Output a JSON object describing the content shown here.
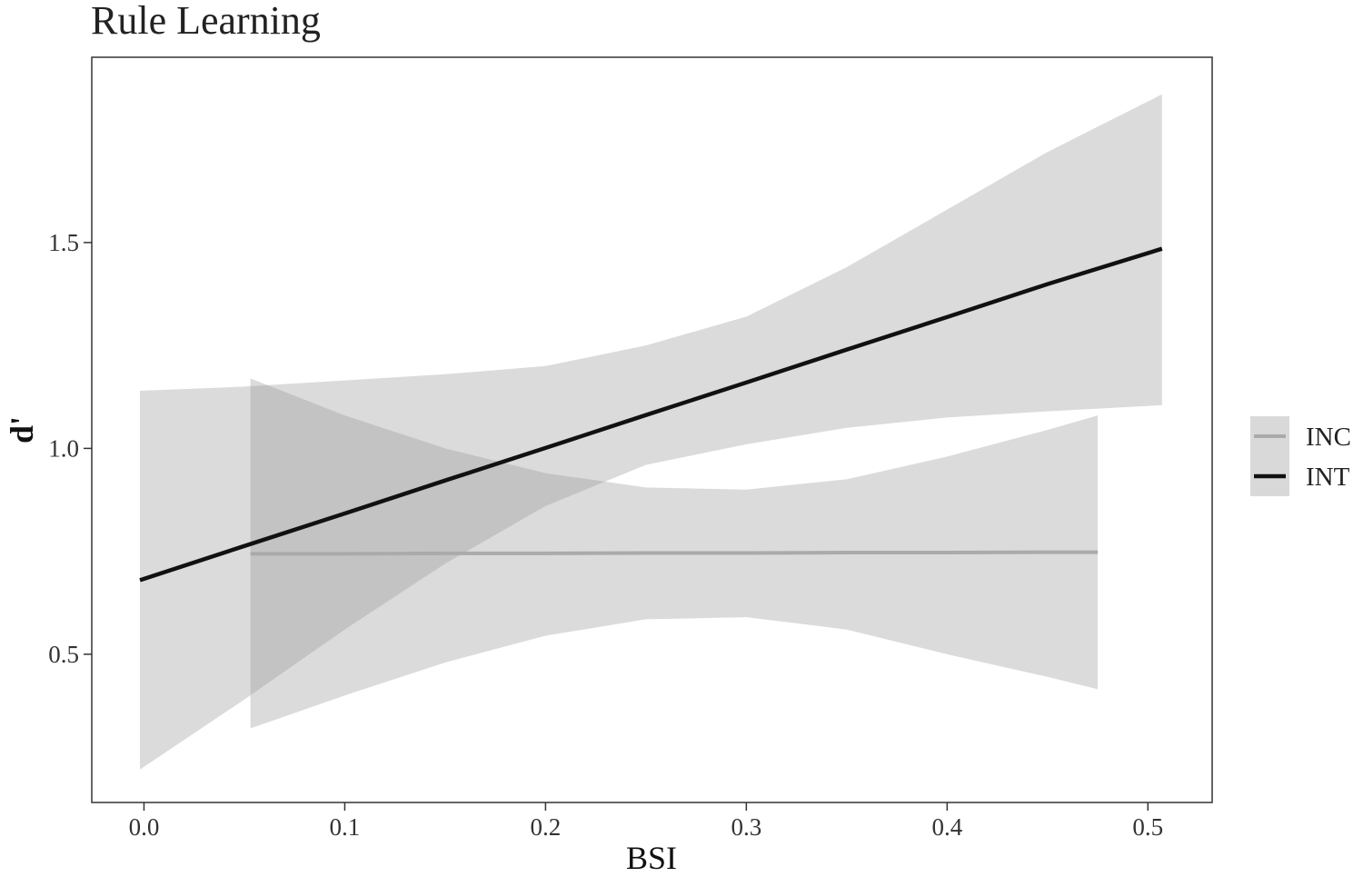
{
  "chart_data": {
    "type": "line",
    "title": "Rule Learning",
    "xlabel": "BSI",
    "ylabel": "d'",
    "xlim": [
      -0.026,
      0.532
    ],
    "ylim": [
      0.14,
      1.95
    ],
    "x_ticks": [
      0.0,
      0.1,
      0.2,
      0.3,
      0.4,
      0.5
    ],
    "x_tick_labels": [
      "0.0",
      "0.1",
      "0.2",
      "0.3",
      "0.4",
      "0.5"
    ],
    "y_ticks": [
      0.5,
      1.0,
      1.5
    ],
    "y_tick_labels": [
      "0.5",
      "1.0",
      "1.5"
    ],
    "grid": false,
    "legend": {
      "placement": "right"
    },
    "series": [
      {
        "name": "INC",
        "color": "#aaaaaa",
        "fill": "#d7d7d7",
        "x": [
          0.053,
          0.1,
          0.15,
          0.2,
          0.25,
          0.3,
          0.35,
          0.4,
          0.45,
          0.475
        ],
        "y": [
          0.744,
          0.744,
          0.745,
          0.745,
          0.746,
          0.746,
          0.747,
          0.747,
          0.748,
          0.748
        ],
        "lower": [
          0.32,
          0.4,
          0.48,
          0.545,
          0.585,
          0.59,
          0.56,
          0.5,
          0.445,
          0.415
        ],
        "upper": [
          1.17,
          1.08,
          1.0,
          0.94,
          0.905,
          0.9,
          0.925,
          0.98,
          1.045,
          1.08
        ]
      },
      {
        "name": "INT",
        "color": "#111111",
        "fill": "#d7d7d7",
        "x": [
          -0.002,
          0.05,
          0.1,
          0.15,
          0.2,
          0.25,
          0.3,
          0.35,
          0.4,
          0.45,
          0.507
        ],
        "y": [
          0.68,
          0.763,
          0.842,
          0.922,
          1.001,
          1.081,
          1.16,
          1.24,
          1.319,
          1.399,
          1.485
        ],
        "lower": [
          0.22,
          0.39,
          0.56,
          0.72,
          0.86,
          0.96,
          1.01,
          1.05,
          1.075,
          1.09,
          1.105
        ],
        "upper": [
          1.14,
          1.15,
          1.165,
          1.18,
          1.2,
          1.25,
          1.32,
          1.44,
          1.58,
          1.72,
          1.86
        ]
      }
    ]
  }
}
